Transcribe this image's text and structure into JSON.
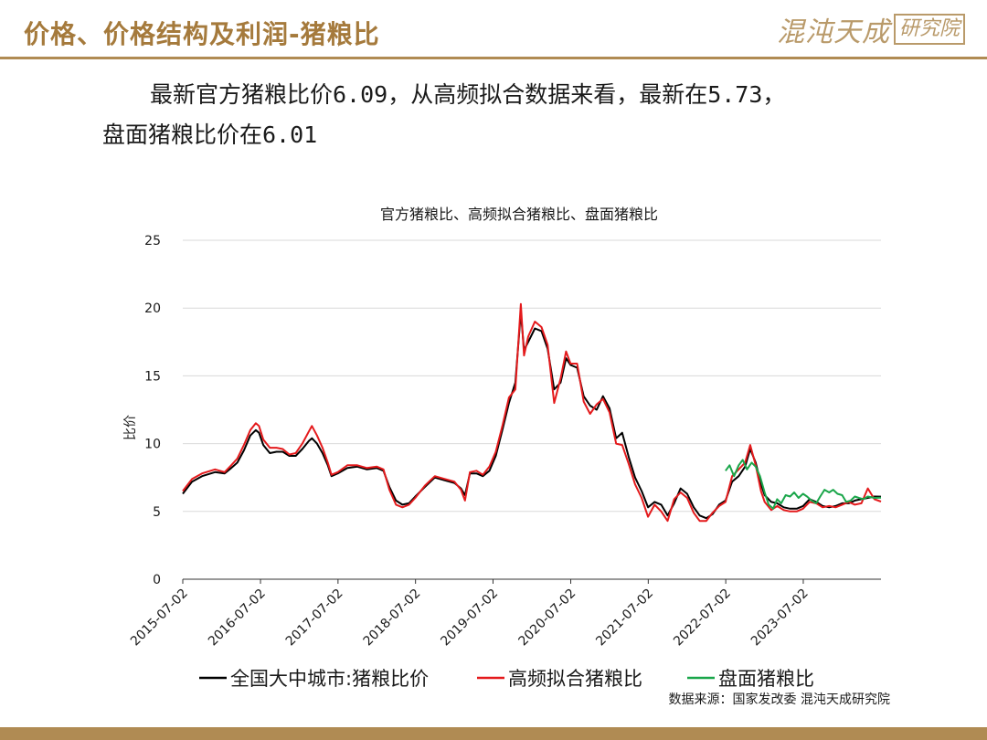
{
  "header": {
    "title": "价格、价格结构及利润-猪粮比",
    "brand_name": "混沌天成",
    "brand_box": "研究院"
  },
  "summary": {
    "line1": "最新官方猪粮比价6.09，从高频拟合数据来看，最新在5.73，",
    "line2": "盘面猪粮比价在6.01"
  },
  "colors": {
    "accent": "#b08b53",
    "series_official": "#000000",
    "series_highfreq": "#e41a1c",
    "series_futures": "#1aa64a",
    "grid": "#d9d9d9"
  },
  "chart_data": {
    "type": "line",
    "title": "官方猪粮比、高频拟合猪粮比、盘面猪粮比",
    "ylabel": "比价",
    "xlabel": "",
    "ylim": [
      0,
      25
    ],
    "yticks": [
      0,
      5,
      10,
      15,
      20,
      25
    ],
    "xlim": [
      "2015-07-02",
      "2024-07-02"
    ],
    "xticks": [
      "2015-07-02",
      "2016-07-02",
      "2017-07-02",
      "2018-07-02",
      "2019-07-02",
      "2020-07-02",
      "2021-07-02",
      "2022-07-02",
      "2023-07-02"
    ],
    "grid": true,
    "legend_position": "bottom",
    "source": "数据来源：国家发改委 混沌天成研究院",
    "series": [
      {
        "name": "全国大中城市:猪粮比价",
        "color": "#000000",
        "points": [
          [
            "2015-07-02",
            6.3
          ],
          [
            "2015-08-15",
            7.2
          ],
          [
            "2015-10-01",
            7.6
          ],
          [
            "2015-12-01",
            7.9
          ],
          [
            "2016-01-15",
            7.8
          ],
          [
            "2016-02-15",
            8.2
          ],
          [
            "2016-03-15",
            8.6
          ],
          [
            "2016-04-15",
            9.5
          ],
          [
            "2016-05-15",
            10.6
          ],
          [
            "2016-06-10",
            11.0
          ],
          [
            "2016-06-25",
            10.8
          ],
          [
            "2016-07-15",
            9.9
          ],
          [
            "2016-08-15",
            9.3
          ],
          [
            "2016-09-15",
            9.4
          ],
          [
            "2016-10-15",
            9.4
          ],
          [
            "2016-11-15",
            9.1
          ],
          [
            "2016-12-15",
            9.1
          ],
          [
            "2017-01-15",
            9.6
          ],
          [
            "2017-02-15",
            10.2
          ],
          [
            "2017-03-01",
            10.4
          ],
          [
            "2017-03-25",
            10.0
          ],
          [
            "2017-04-20",
            9.3
          ],
          [
            "2017-05-15",
            8.4
          ],
          [
            "2017-06-01",
            7.6
          ],
          [
            "2017-07-01",
            7.8
          ],
          [
            "2017-08-15",
            8.2
          ],
          [
            "2017-10-01",
            8.3
          ],
          [
            "2017-11-15",
            8.1
          ],
          [
            "2018-01-01",
            8.2
          ],
          [
            "2018-02-01",
            8.0
          ],
          [
            "2018-03-01",
            6.8
          ],
          [
            "2018-04-01",
            5.8
          ],
          [
            "2018-05-01",
            5.5
          ],
          [
            "2018-06-01",
            5.6
          ],
          [
            "2018-07-01",
            6.1
          ],
          [
            "2018-08-15",
            6.8
          ],
          [
            "2018-10-01",
            7.5
          ],
          [
            "2018-11-15",
            7.3
          ],
          [
            "2019-01-01",
            7.1
          ],
          [
            "2019-02-01",
            6.7
          ],
          [
            "2019-02-20",
            6.2
          ],
          [
            "2019-03-15",
            7.8
          ],
          [
            "2019-04-15",
            7.8
          ],
          [
            "2019-05-15",
            7.6
          ],
          [
            "2019-06-15",
            8.0
          ],
          [
            "2019-07-15",
            9.1
          ],
          [
            "2019-08-15",
            11.0
          ],
          [
            "2019-09-15",
            13.0
          ],
          [
            "2019-10-15",
            14.5
          ],
          [
            "2019-11-10",
            19.7
          ],
          [
            "2019-11-25",
            16.9
          ],
          [
            "2019-12-15",
            17.5
          ],
          [
            "2020-01-15",
            18.5
          ],
          [
            "2020-02-15",
            18.3
          ],
          [
            "2020-03-15",
            17.0
          ],
          [
            "2020-04-15",
            14.0
          ],
          [
            "2020-05-15",
            14.5
          ],
          [
            "2020-06-10",
            16.3
          ],
          [
            "2020-07-01",
            15.8
          ],
          [
            "2020-08-01",
            15.6
          ],
          [
            "2020-09-01",
            13.5
          ],
          [
            "2020-10-01",
            12.8
          ],
          [
            "2020-11-01",
            12.5
          ],
          [
            "2020-12-01",
            13.5
          ],
          [
            "2021-01-01",
            12.6
          ],
          [
            "2021-02-01",
            10.4
          ],
          [
            "2021-03-01",
            10.8
          ],
          [
            "2021-04-01",
            9.0
          ],
          [
            "2021-05-01",
            7.5
          ],
          [
            "2021-06-01",
            6.5
          ],
          [
            "2021-07-01",
            5.3
          ],
          [
            "2021-08-01",
            5.7
          ],
          [
            "2021-09-01",
            5.5
          ],
          [
            "2021-10-01",
            4.7
          ],
          [
            "2021-11-01",
            5.6
          ],
          [
            "2021-12-01",
            6.7
          ],
          [
            "2022-01-01",
            6.3
          ],
          [
            "2022-02-01",
            5.3
          ],
          [
            "2022-03-01",
            4.7
          ],
          [
            "2022-04-01",
            4.5
          ],
          [
            "2022-05-01",
            4.8
          ],
          [
            "2022-06-01",
            5.5
          ],
          [
            "2022-07-01",
            5.8
          ],
          [
            "2022-08-01",
            7.2
          ],
          [
            "2022-09-01",
            7.6
          ],
          [
            "2022-10-01",
            8.3
          ],
          [
            "2022-10-25",
            9.6
          ],
          [
            "2022-11-20",
            8.6
          ],
          [
            "2022-12-15",
            7.0
          ],
          [
            "2023-01-01",
            6.2
          ],
          [
            "2023-02-01",
            5.7
          ],
          [
            "2023-03-01",
            5.6
          ],
          [
            "2023-04-01",
            5.3
          ],
          [
            "2023-05-01",
            5.2
          ],
          [
            "2023-06-01",
            5.2
          ],
          [
            "2023-07-01",
            5.4
          ],
          [
            "2023-08-01",
            5.9
          ],
          [
            "2023-09-01",
            5.7
          ],
          [
            "2023-10-01",
            5.4
          ],
          [
            "2023-11-01",
            5.3
          ],
          [
            "2023-12-01",
            5.4
          ],
          [
            "2024-01-01",
            5.6
          ],
          [
            "2024-02-01",
            5.6
          ],
          [
            "2024-03-01",
            5.8
          ],
          [
            "2024-04-01",
            5.9
          ],
          [
            "2024-05-01",
            6.0
          ],
          [
            "2024-06-01",
            6.1
          ],
          [
            "2024-07-02",
            6.09
          ]
        ]
      },
      {
        "name": "高频拟合猪粮比",
        "color": "#e41a1c",
        "points": [
          [
            "2015-07-02",
            6.5
          ],
          [
            "2015-08-15",
            7.4
          ],
          [
            "2015-10-01",
            7.8
          ],
          [
            "2015-12-01",
            8.1
          ],
          [
            "2016-01-15",
            7.9
          ],
          [
            "2016-02-15",
            8.4
          ],
          [
            "2016-03-15",
            8.9
          ],
          [
            "2016-04-15",
            9.9
          ],
          [
            "2016-05-15",
            11.0
          ],
          [
            "2016-06-10",
            11.5
          ],
          [
            "2016-06-25",
            11.3
          ],
          [
            "2016-07-15",
            10.3
          ],
          [
            "2016-08-15",
            9.7
          ],
          [
            "2016-09-15",
            9.7
          ],
          [
            "2016-10-15",
            9.6
          ],
          [
            "2016-11-15",
            9.2
          ],
          [
            "2016-12-15",
            9.3
          ],
          [
            "2017-01-15",
            10.0
          ],
          [
            "2017-02-15",
            10.9
          ],
          [
            "2017-03-01",
            11.3
          ],
          [
            "2017-03-25",
            10.6
          ],
          [
            "2017-04-20",
            9.7
          ],
          [
            "2017-05-15",
            8.6
          ],
          [
            "2017-06-01",
            7.7
          ],
          [
            "2017-07-01",
            7.9
          ],
          [
            "2017-08-15",
            8.4
          ],
          [
            "2017-10-01",
            8.4
          ],
          [
            "2017-11-15",
            8.2
          ],
          [
            "2018-01-01",
            8.3
          ],
          [
            "2018-02-01",
            8.1
          ],
          [
            "2018-03-01",
            6.6
          ],
          [
            "2018-04-01",
            5.5
          ],
          [
            "2018-05-01",
            5.3
          ],
          [
            "2018-06-01",
            5.5
          ],
          [
            "2018-07-01",
            6.0
          ],
          [
            "2018-08-15",
            6.9
          ],
          [
            "2018-10-01",
            7.6
          ],
          [
            "2018-11-15",
            7.4
          ],
          [
            "2019-01-01",
            7.2
          ],
          [
            "2019-02-01",
            6.6
          ],
          [
            "2019-02-20",
            5.8
          ],
          [
            "2019-03-15",
            7.9
          ],
          [
            "2019-04-15",
            8.0
          ],
          [
            "2019-05-15",
            7.7
          ],
          [
            "2019-06-15",
            8.3
          ],
          [
            "2019-07-15",
            9.4
          ],
          [
            "2019-08-15",
            11.3
          ],
          [
            "2019-09-15",
            13.4
          ],
          [
            "2019-10-15",
            14.0
          ],
          [
            "2019-11-10",
            20.3
          ],
          [
            "2019-11-25",
            16.5
          ],
          [
            "2019-12-15",
            17.9
          ],
          [
            "2020-01-15",
            19.0
          ],
          [
            "2020-02-15",
            18.6
          ],
          [
            "2020-03-15",
            17.3
          ],
          [
            "2020-04-15",
            13.0
          ],
          [
            "2020-05-15",
            14.8
          ],
          [
            "2020-06-10",
            16.8
          ],
          [
            "2020-07-01",
            15.9
          ],
          [
            "2020-08-01",
            15.9
          ],
          [
            "2020-09-01",
            13.1
          ],
          [
            "2020-10-01",
            12.2
          ],
          [
            "2020-11-01",
            12.9
          ],
          [
            "2020-12-01",
            13.3
          ],
          [
            "2021-01-01",
            12.3
          ],
          [
            "2021-02-01",
            10.0
          ],
          [
            "2021-03-01",
            9.9
          ],
          [
            "2021-04-01",
            8.5
          ],
          [
            "2021-05-01",
            7.0
          ],
          [
            "2021-06-01",
            6.0
          ],
          [
            "2021-07-01",
            4.6
          ],
          [
            "2021-08-01",
            5.5
          ],
          [
            "2021-09-01",
            5.0
          ],
          [
            "2021-10-01",
            4.3
          ],
          [
            "2021-11-01",
            5.9
          ],
          [
            "2021-12-01",
            6.4
          ],
          [
            "2022-01-01",
            6.0
          ],
          [
            "2022-02-01",
            4.9
          ],
          [
            "2022-03-01",
            4.3
          ],
          [
            "2022-04-01",
            4.3
          ],
          [
            "2022-05-01",
            4.9
          ],
          [
            "2022-06-01",
            5.4
          ],
          [
            "2022-07-01",
            5.7
          ],
          [
            "2022-08-01",
            7.6
          ],
          [
            "2022-09-01",
            8.1
          ],
          [
            "2022-10-01",
            8.6
          ],
          [
            "2022-10-25",
            9.9
          ],
          [
            "2022-11-20",
            8.4
          ],
          [
            "2022-12-15",
            6.5
          ],
          [
            "2023-01-01",
            5.7
          ],
          [
            "2023-02-01",
            5.1
          ],
          [
            "2023-03-01",
            5.4
          ],
          [
            "2023-04-01",
            5.1
          ],
          [
            "2023-05-01",
            5.0
          ],
          [
            "2023-06-01",
            5.0
          ],
          [
            "2023-07-01",
            5.2
          ],
          [
            "2023-08-01",
            5.7
          ],
          [
            "2023-09-01",
            5.6
          ],
          [
            "2023-10-01",
            5.3
          ],
          [
            "2023-11-01",
            5.4
          ],
          [
            "2023-12-01",
            5.3
          ],
          [
            "2024-01-01",
            5.5
          ],
          [
            "2024-02-01",
            5.7
          ],
          [
            "2024-03-01",
            5.5
          ],
          [
            "2024-04-01",
            5.6
          ],
          [
            "2024-05-01",
            6.7
          ],
          [
            "2024-06-01",
            5.9
          ],
          [
            "2024-07-02",
            5.73
          ]
        ]
      },
      {
        "name": "盘面猪粮比",
        "color": "#1aa64a",
        "points": [
          [
            "2022-07-01",
            8.0
          ],
          [
            "2022-07-20",
            8.4
          ],
          [
            "2022-08-10",
            7.6
          ],
          [
            "2022-09-01",
            8.4
          ],
          [
            "2022-09-20",
            8.8
          ],
          [
            "2022-10-10",
            8.1
          ],
          [
            "2022-11-01",
            8.6
          ],
          [
            "2022-11-20",
            8.3
          ],
          [
            "2022-12-10",
            7.6
          ],
          [
            "2023-01-01",
            6.4
          ],
          [
            "2023-01-20",
            5.5
          ],
          [
            "2023-02-10",
            5.2
          ],
          [
            "2023-03-01",
            5.9
          ],
          [
            "2023-03-20",
            5.6
          ],
          [
            "2023-04-10",
            6.2
          ],
          [
            "2023-05-01",
            6.1
          ],
          [
            "2023-05-20",
            6.4
          ],
          [
            "2023-06-10",
            6.0
          ],
          [
            "2023-07-01",
            6.3
          ],
          [
            "2023-07-20",
            6.1
          ],
          [
            "2023-08-10",
            5.8
          ],
          [
            "2023-09-01",
            5.6
          ],
          [
            "2023-09-20",
            6.1
          ],
          [
            "2023-10-10",
            6.6
          ],
          [
            "2023-11-01",
            6.4
          ],
          [
            "2023-11-20",
            6.6
          ],
          [
            "2023-12-10",
            6.3
          ],
          [
            "2024-01-01",
            6.2
          ],
          [
            "2024-01-20",
            5.7
          ],
          [
            "2024-02-10",
            5.8
          ],
          [
            "2024-03-01",
            6.1
          ],
          [
            "2024-03-20",
            6.0
          ],
          [
            "2024-04-10",
            5.9
          ],
          [
            "2024-05-01",
            6.1
          ],
          [
            "2024-06-01",
            6.0
          ],
          [
            "2024-07-02",
            6.01
          ]
        ]
      }
    ]
  }
}
